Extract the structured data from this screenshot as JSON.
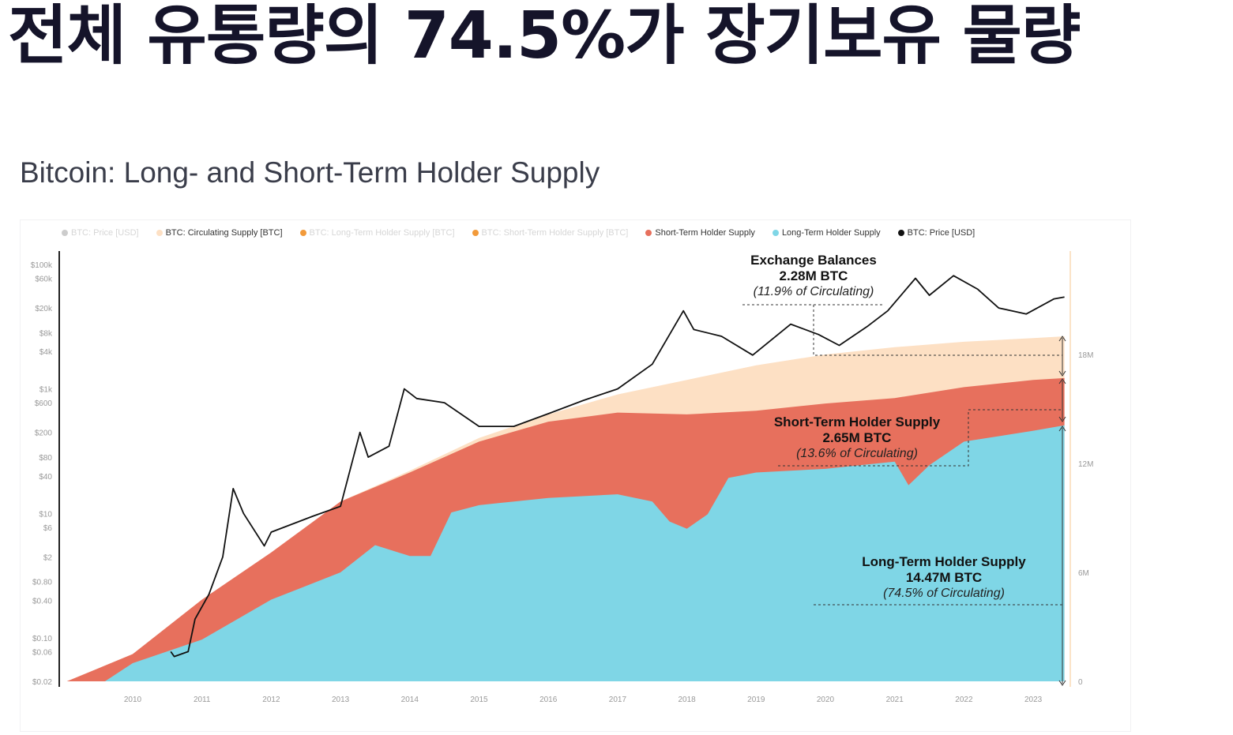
{
  "headline": "전체 유통량의 74.5%가 장기보유 물량",
  "chart_data": {
    "type": "area",
    "title": "Bitcoin: Long- and Short-Term Holder Supply",
    "legend": [
      {
        "label": "BTC: Price [USD]",
        "color": "#aaaaaa",
        "active": false
      },
      {
        "label": "BTC: Circulating Supply [BTC]",
        "color": "#fde0c4",
        "active": true
      },
      {
        "label": "BTC: Long-Term Holder Supply [BTC]",
        "color": "#f29a3a",
        "active": false
      },
      {
        "label": "BTC: Short-Term Holder Supply [BTC]",
        "color": "#f29a3a",
        "active": false
      },
      {
        "label": "Short-Term Holder Supply",
        "color": "#e7705d",
        "active": true
      },
      {
        "label": "Long-Term Holder Supply",
        "color": "#7fd6e6",
        "active": true
      },
      {
        "label": "BTC: Price [USD]",
        "color": "#111111",
        "active": true
      }
    ],
    "x_ticks": [
      "2010",
      "2011",
      "2012",
      "2013",
      "2014",
      "2015",
      "2016",
      "2017",
      "2018",
      "2019",
      "2020",
      "2021",
      "2022",
      "2023"
    ],
    "xlim": [
      2009.05,
      2023.55
    ],
    "y_left_ticks": [
      "$100k",
      "$60k",
      "$20k",
      "$8k",
      "$4k",
      "$1k",
      "$600",
      "$200",
      "$80",
      "$40",
      "$10",
      "$6",
      "$2",
      "$0.80",
      "$0.40",
      "$0.10",
      "$0.06",
      "$0.02"
    ],
    "y_left_values": [
      100000,
      60000,
      20000,
      8000,
      4000,
      1000,
      600,
      200,
      80,
      40,
      10,
      6,
      2,
      0.8,
      0.4,
      0.1,
      0.06,
      0.02
    ],
    "y_left_scale": "log",
    "y_left_range": [
      0.02,
      100000
    ],
    "y_right_ticks": [
      "18M",
      "12M",
      "6M",
      "0"
    ],
    "y_right_values": [
      18,
      12,
      6,
      0
    ],
    "y_right_range_millions": [
      0,
      19
    ],
    "circulating_supply_M": [
      [
        2009.05,
        0
      ],
      [
        2010,
        1.5
      ],
      [
        2011,
        4.5
      ],
      [
        2012,
        7.1
      ],
      [
        2013,
        9.9
      ],
      [
        2014,
        11.6
      ],
      [
        2015,
        13.4
      ],
      [
        2016,
        14.7
      ],
      [
        2017,
        15.8
      ],
      [
        2018,
        16.6
      ],
      [
        2019,
        17.4
      ],
      [
        2020,
        18.0
      ],
      [
        2021,
        18.4
      ],
      [
        2022,
        18.7
      ],
      [
        2023,
        18.9
      ],
      [
        2023.45,
        19.0
      ]
    ],
    "lth_plus_sth_supply_M": [
      [
        2009.05,
        0
      ],
      [
        2010,
        1.5
      ],
      [
        2011,
        4.5
      ],
      [
        2012,
        7.1
      ],
      [
        2013,
        9.9
      ],
      [
        2014,
        11.5
      ],
      [
        2015,
        13.2
      ],
      [
        2016,
        14.3
      ],
      [
        2017,
        14.8
      ],
      [
        2018,
        14.7
      ],
      [
        2019,
        14.9
      ],
      [
        2020,
        15.3
      ],
      [
        2021,
        15.6
      ],
      [
        2022,
        16.2
      ],
      [
        2023,
        16.6
      ],
      [
        2023.45,
        16.7
      ]
    ],
    "lth_supply_M": [
      [
        2009.05,
        0
      ],
      [
        2009.6,
        0
      ],
      [
        2010,
        1.0
      ],
      [
        2011,
        2.3
      ],
      [
        2012,
        4.5
      ],
      [
        2013,
        6.0
      ],
      [
        2013.5,
        7.5
      ],
      [
        2014,
        6.9
      ],
      [
        2014.3,
        6.9
      ],
      [
        2014.6,
        9.3
      ],
      [
        2015,
        9.7
      ],
      [
        2016,
        10.1
      ],
      [
        2017,
        10.3
      ],
      [
        2017.5,
        9.9
      ],
      [
        2017.75,
        8.8
      ],
      [
        2018,
        8.4
      ],
      [
        2018.3,
        9.2
      ],
      [
        2018.6,
        11.2
      ],
      [
        2019,
        11.5
      ],
      [
        2020,
        11.7
      ],
      [
        2020.5,
        11.9
      ],
      [
        2021,
        12.1
      ],
      [
        2021.2,
        10.8
      ],
      [
        2021.5,
        11.9
      ],
      [
        2022,
        13.2
      ],
      [
        2023,
        13.8
      ],
      [
        2023.45,
        14.1
      ]
    ],
    "price_usd": [
      [
        2010.55,
        0.06
      ],
      [
        2010.6,
        0.05
      ],
      [
        2010.8,
        0.06
      ],
      [
        2010.9,
        0.2
      ],
      [
        2011.1,
        0.5
      ],
      [
        2011.3,
        2
      ],
      [
        2011.45,
        25
      ],
      [
        2011.6,
        10
      ],
      [
        2011.9,
        3
      ],
      [
        2012,
        5
      ],
      [
        2012.6,
        9
      ],
      [
        2013,
        13
      ],
      [
        2013.28,
        200
      ],
      [
        2013.4,
        80
      ],
      [
        2013.7,
        120
      ],
      [
        2013.92,
        1000
      ],
      [
        2014.1,
        700
      ],
      [
        2014.5,
        600
      ],
      [
        2015,
        250
      ],
      [
        2015.5,
        250
      ],
      [
        2016,
        400
      ],
      [
        2016.5,
        650
      ],
      [
        2017,
        1000
      ],
      [
        2017.5,
        2500
      ],
      [
        2017.95,
        18000
      ],
      [
        2018.1,
        9000
      ],
      [
        2018.5,
        7000
      ],
      [
        2018.95,
        3500
      ],
      [
        2019.5,
        11000
      ],
      [
        2019.9,
        7500
      ],
      [
        2020.2,
        5000
      ],
      [
        2020.6,
        10000
      ],
      [
        2020.9,
        18000
      ],
      [
        2021.3,
        60000
      ],
      [
        2021.5,
        32000
      ],
      [
        2021.85,
        66000
      ],
      [
        2022.2,
        40000
      ],
      [
        2022.5,
        20000
      ],
      [
        2022.9,
        16000
      ],
      [
        2023.3,
        28000
      ],
      [
        2023.45,
        30000
      ]
    ],
    "annotations": {
      "exchange": {
        "title": "Exchange Balances",
        "value": "2.28M BTC",
        "share": "(11.9% of Circulating)"
      },
      "sth": {
        "title": "Short-Term Holder Supply",
        "value": "2.65M BTC",
        "share": "(13.6% of Circulating)"
      },
      "lth": {
        "title": "Long-Term Holder Supply",
        "value": "14.47M BTC",
        "share": "(74.5% of Circulating)"
      }
    },
    "colors": {
      "circulating": "#fde0c4",
      "sth": "#e7705d",
      "lth": "#7fd6e6",
      "price": "#111111"
    }
  }
}
